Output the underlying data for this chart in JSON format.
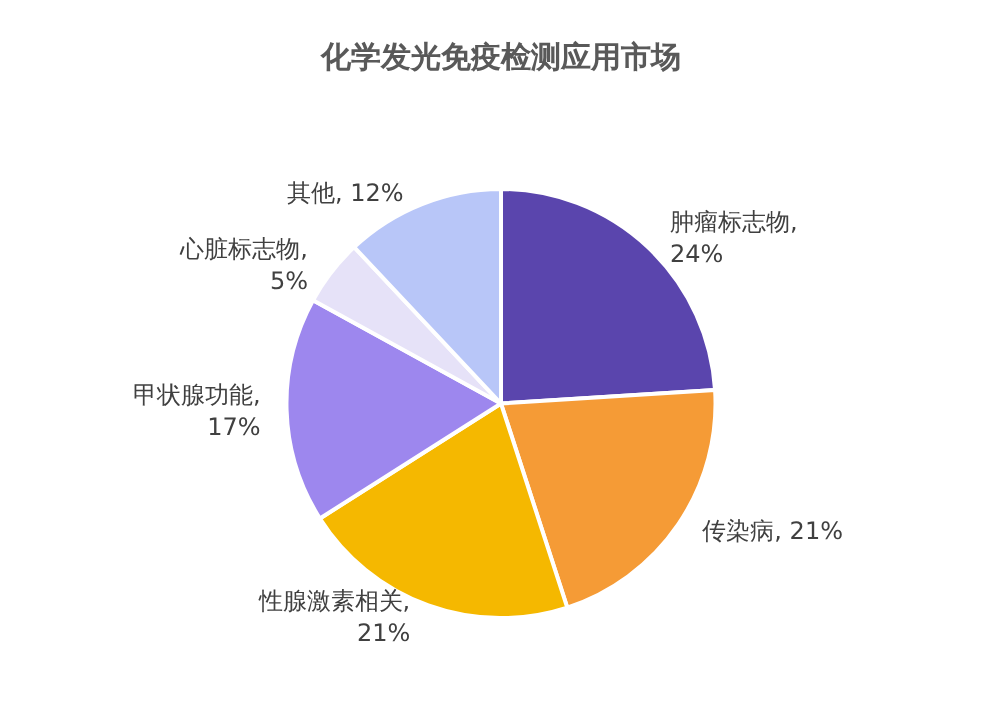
{
  "chart_data": {
    "type": "pie",
    "title": "化学发光免疫检测应用市场",
    "categories": [
      "肿瘤标志物",
      "传染病",
      "性腺激素相关",
      "甲状腺功能",
      "心脏标志物",
      "其他"
    ],
    "values": [
      24,
      21,
      21,
      17,
      5,
      12
    ],
    "colors": [
      "#5a45ad",
      "#f59b36",
      "#f5b800",
      "#9d87ee",
      "#e6e2f8",
      "#b8c6f8"
    ],
    "value_labels": [
      ",\n24%",
      ", 21%",
      ",\n21%",
      ",\n17%",
      ",\n5%",
      ", 12%"
    ],
    "legend": false
  }
}
